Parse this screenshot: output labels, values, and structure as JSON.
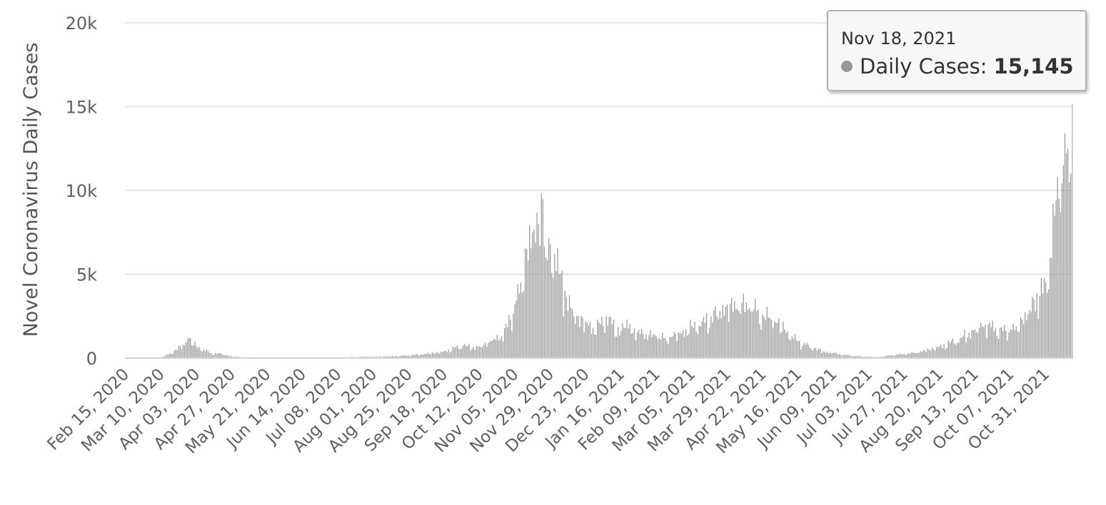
{
  "colors": {
    "bar": "#999999",
    "grid": "#e6e6e6",
    "axis": "#ccd6eb",
    "text": "#606060"
  },
  "tooltip": {
    "date": "Nov 18, 2021",
    "series_label": "Daily Cases:",
    "value": "15,145"
  },
  "chart_data": {
    "type": "bar",
    "ylabel": "Novel Coronavirus Daily Cases",
    "xlabel": "",
    "ylim": [
      0,
      20000
    ],
    "y_ticks": [
      {
        "value": 0,
        "label": "0"
      },
      {
        "value": 5000,
        "label": "5k"
      },
      {
        "value": 10000,
        "label": "10k"
      },
      {
        "value": 15000,
        "label": "15k"
      },
      {
        "value": 20000,
        "label": "20k"
      }
    ],
    "x_start": "2020-02-15",
    "x_end": "2021-11-18",
    "x_tick_labels": [
      "Feb 15, 2020",
      "Mar 10, 2020",
      "Apr 03, 2020",
      "Apr 27, 2020",
      "May 21, 2020",
      "Jun 14, 2020",
      "Jul 08, 2020",
      "Aug 01, 2020",
      "Aug 25, 2020",
      "Sep 18, 2020",
      "Oct 12, 2020",
      "Nov 05, 2020",
      "Nov 29, 2020",
      "Dec 23, 2020",
      "Jan 16, 2021",
      "Feb 09, 2021",
      "Mar 05, 2021",
      "Mar 29, 2021",
      "Apr 22, 2021",
      "May 16, 2021",
      "Jun 09, 2021",
      "Jul 03, 2021",
      "Jul 27, 2021",
      "Aug 20, 2021",
      "Sep 13, 2021",
      "Oct 07, 2021",
      "Oct 31, 2021"
    ],
    "grid": true,
    "legend": "none",
    "series": [
      {
        "points": [
          [
            "2020-03-10",
            50
          ],
          [
            "2020-03-15",
            200
          ],
          [
            "2020-03-20",
            500
          ],
          [
            "2020-03-25",
            800
          ],
          [
            "2020-03-29",
            1200
          ],
          [
            "2020-04-03",
            700
          ],
          [
            "2020-04-08",
            500
          ],
          [
            "2020-04-13",
            300
          ],
          [
            "2020-04-20",
            250
          ],
          [
            "2020-04-27",
            100
          ],
          [
            "2020-05-10",
            30
          ],
          [
            "2020-06-14",
            20
          ],
          [
            "2020-07-08",
            40
          ],
          [
            "2020-07-28",
            80
          ],
          [
            "2020-08-01",
            70
          ],
          [
            "2020-08-10",
            100
          ],
          [
            "2020-08-25",
            150
          ],
          [
            "2020-09-05",
            250
          ],
          [
            "2020-09-18",
            400
          ],
          [
            "2020-09-25",
            600
          ],
          [
            "2020-10-01",
            750
          ],
          [
            "2020-10-08",
            650
          ],
          [
            "2020-10-12",
            700
          ],
          [
            "2020-10-20",
            1000
          ],
          [
            "2020-10-27",
            1300
          ],
          [
            "2020-11-02",
            2300
          ],
          [
            "2020-11-05",
            3200
          ],
          [
            "2020-11-09",
            4500
          ],
          [
            "2020-11-13",
            6500
          ],
          [
            "2020-11-17",
            7500
          ],
          [
            "2020-11-21",
            8000
          ],
          [
            "2020-11-24",
            9500
          ],
          [
            "2020-11-26",
            6000
          ],
          [
            "2020-11-29",
            6800
          ],
          [
            "2020-12-02",
            6200
          ],
          [
            "2020-12-05",
            5000
          ],
          [
            "2020-12-09",
            4000
          ],
          [
            "2020-12-13",
            3000
          ],
          [
            "2020-12-18",
            2500
          ],
          [
            "2020-12-23",
            2200
          ],
          [
            "2020-12-28",
            1800
          ],
          [
            "2021-01-02",
            2000
          ],
          [
            "2021-01-06",
            2500
          ],
          [
            "2021-01-10",
            2000
          ],
          [
            "2021-01-16",
            1600
          ],
          [
            "2021-01-20",
            2300
          ],
          [
            "2021-01-24",
            1500
          ],
          [
            "2021-01-28",
            1700
          ],
          [
            "2021-02-02",
            1400
          ],
          [
            "2021-02-09",
            1300
          ],
          [
            "2021-02-15",
            1200
          ],
          [
            "2021-02-20",
            1300
          ],
          [
            "2021-02-25",
            1500
          ],
          [
            "2021-03-01",
            1700
          ],
          [
            "2021-03-05",
            1900
          ],
          [
            "2021-03-12",
            2200
          ],
          [
            "2021-03-18",
            2500
          ],
          [
            "2021-03-24",
            2800
          ],
          [
            "2021-03-29",
            3200
          ],
          [
            "2021-04-03",
            3400
          ],
          [
            "2021-04-08",
            3300
          ],
          [
            "2021-04-13",
            3000
          ],
          [
            "2021-04-18",
            2800
          ],
          [
            "2021-04-22",
            2600
          ],
          [
            "2021-04-27",
            2400
          ],
          [
            "2021-05-02",
            2100
          ],
          [
            "2021-05-07",
            1700
          ],
          [
            "2021-05-12",
            1300
          ],
          [
            "2021-05-16",
            1000
          ],
          [
            "2021-05-21",
            800
          ],
          [
            "2021-05-27",
            600
          ],
          [
            "2021-06-02",
            400
          ],
          [
            "2021-06-09",
            300
          ],
          [
            "2021-06-16",
            200
          ],
          [
            "2021-06-23",
            120
          ],
          [
            "2021-07-03",
            80
          ],
          [
            "2021-07-10",
            60
          ],
          [
            "2021-07-17",
            150
          ],
          [
            "2021-07-27",
            250
          ],
          [
            "2021-08-03",
            300
          ],
          [
            "2021-08-10",
            450
          ],
          [
            "2021-08-20",
            700
          ],
          [
            "2021-08-27",
            900
          ],
          [
            "2021-09-03",
            1200
          ],
          [
            "2021-09-09",
            1500
          ],
          [
            "2021-09-13",
            1700
          ],
          [
            "2021-09-18",
            1900
          ],
          [
            "2021-09-22",
            2000
          ],
          [
            "2021-09-27",
            1800
          ],
          [
            "2021-10-02",
            1600
          ],
          [
            "2021-10-07",
            1700
          ],
          [
            "2021-10-11",
            1900
          ],
          [
            "2021-10-15",
            2300
          ],
          [
            "2021-10-19",
            2600
          ],
          [
            "2021-10-23",
            3500
          ],
          [
            "2021-10-27",
            3700
          ],
          [
            "2021-10-31",
            4500
          ],
          [
            "2021-11-03",
            6000
          ],
          [
            "2021-11-06",
            8500
          ],
          [
            "2021-11-09",
            9500
          ],
          [
            "2021-11-12",
            11500
          ],
          [
            "2021-11-15",
            12500
          ],
          [
            "2021-11-17",
            11000
          ],
          [
            "2021-11-18",
            15145
          ]
        ]
      }
    ]
  }
}
